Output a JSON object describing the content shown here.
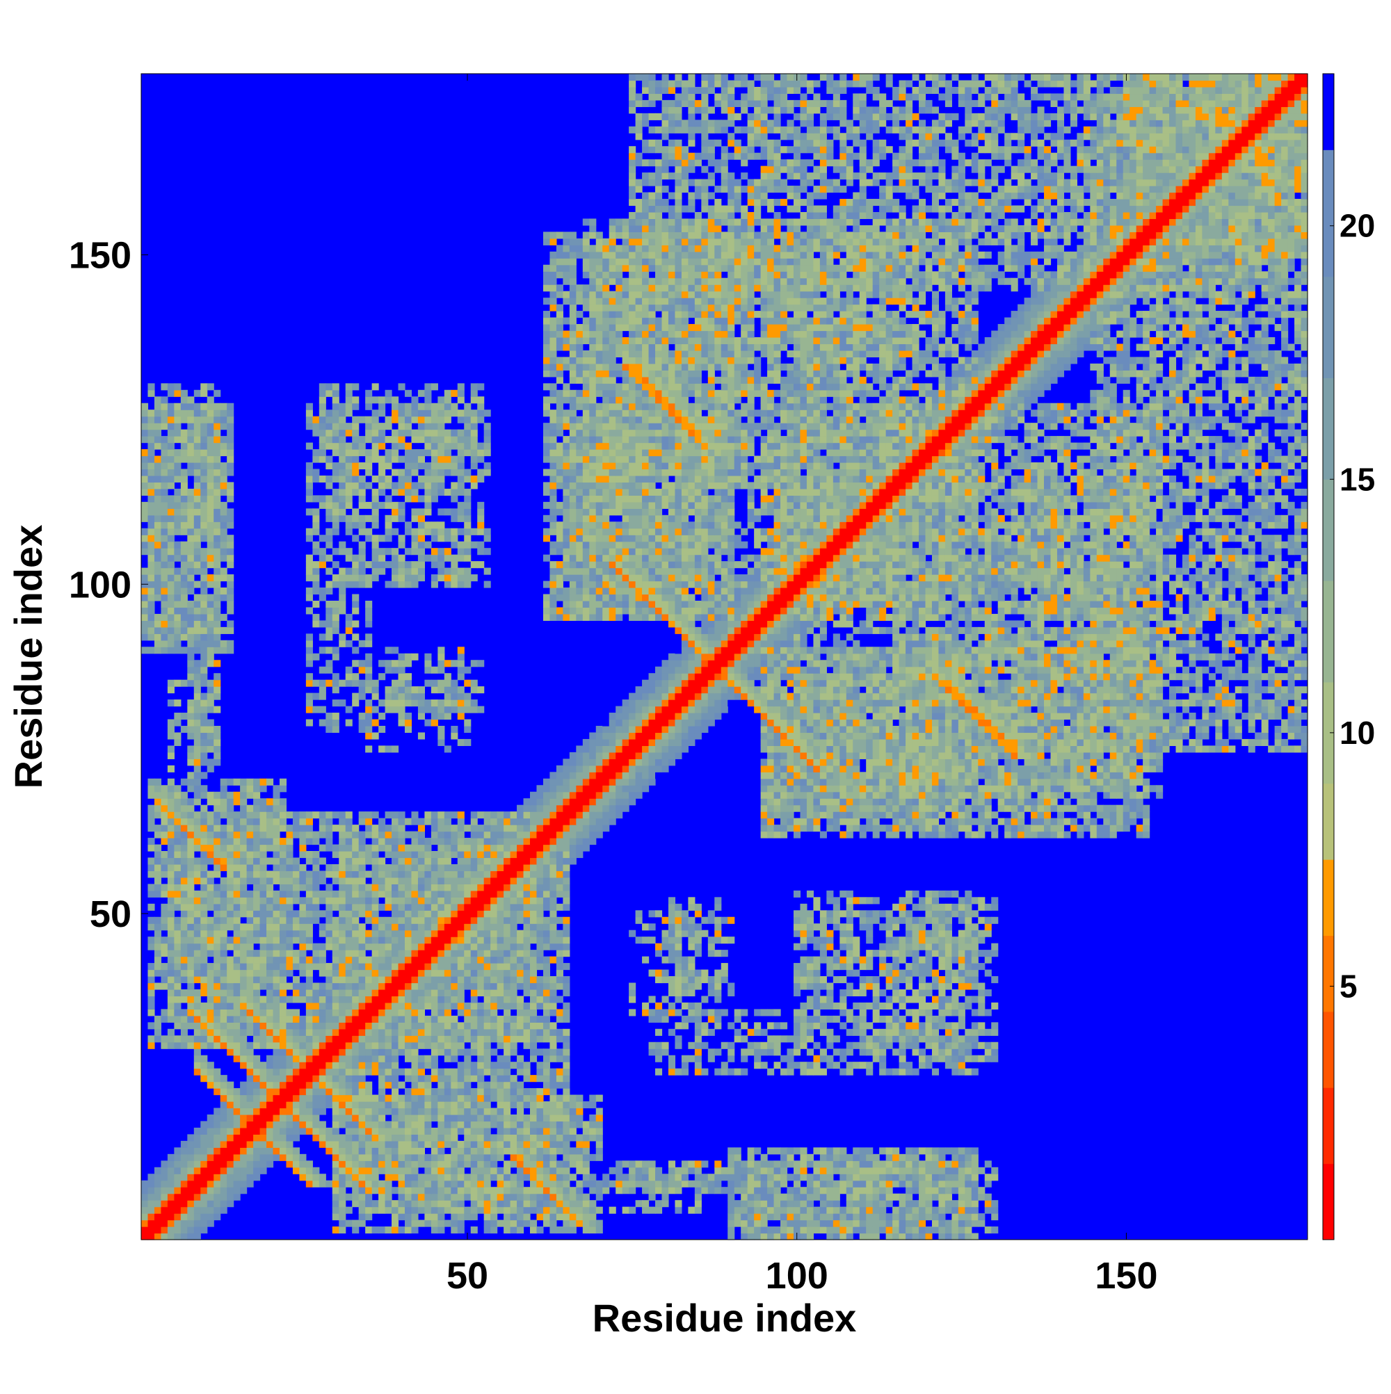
{
  "chart_data": {
    "type": "heatmap",
    "title": "",
    "xlabel": "Residue index",
    "ylabel": "Residue index",
    "xlim": [
      1,
      177
    ],
    "ylim": [
      1,
      177
    ],
    "x_ticks": [
      50,
      100,
      150
    ],
    "y_ticks": [
      50,
      100,
      150
    ],
    "colorbar": {
      "ticks": [
        5,
        10,
        15,
        20
      ],
      "range": [
        0,
        23
      ],
      "levels": [
        {
          "from": 0,
          "to": 1.5,
          "color": "#ff0000"
        },
        {
          "from": 1.5,
          "to": 3,
          "color": "#ff2a00"
        },
        {
          "from": 3,
          "to": 4.5,
          "color": "#ff5500"
        },
        {
          "from": 4.5,
          "to": 6,
          "color": "#ff7700"
        },
        {
          "from": 6,
          "to": 7.5,
          "color": "#ff9a00"
        },
        {
          "from": 7.5,
          "to": 9,
          "color": "#b8c27a"
        },
        {
          "from": 9,
          "to": 11,
          "color": "#a9bf86"
        },
        {
          "from": 11,
          "to": 13,
          "color": "#98b592"
        },
        {
          "from": 13,
          "to": 15,
          "color": "#8aaa9e"
        },
        {
          "from": 15,
          "to": 17,
          "color": "#7c9fa9"
        },
        {
          "from": 17,
          "to": 19,
          "color": "#7194b4"
        },
        {
          "from": 19,
          "to": 21.5,
          "color": "#6a8cbd"
        },
        {
          "from": 21.5,
          "to": 23,
          "color": "#0000ff"
        }
      ]
    },
    "background_value": 23,
    "colors": {
      "far": "#0000ff",
      "diagonal": "#ff0000",
      "contact": "#ff8c00",
      "mid": "#9fbf8a"
    },
    "secondary_structure_bands": [
      {
        "type": "antiparallel",
        "center": [
          13,
          22
        ],
        "half_len": 4
      },
      {
        "type": "antiparallel",
        "center": [
          30,
          22
        ],
        "half_len": 6
      },
      {
        "type": "antiparallel",
        "center": [
          15,
          28
        ],
        "half_len": 7
      },
      {
        "type": "antiparallel",
        "center": [
          62,
          8
        ],
        "half_len": 5
      },
      {
        "type": "antiparallel",
        "center": [
          80,
          127
        ],
        "half_len": 6
      },
      {
        "type": "antiparallel",
        "center": [
          80,
          95
        ],
        "half_len": 8
      },
      {
        "type": "antiparallel",
        "center": [
          95,
          80
        ],
        "half_len": 8
      },
      {
        "type": "antiparallel",
        "center": [
          128,
          80
        ],
        "half_len": 5
      }
    ],
    "contact_blocks": [
      {
        "x": [
          1,
          14
        ],
        "y": [
          90,
          127
        ],
        "density": 0.85
      },
      {
        "x": [
          8,
          12
        ],
        "y": [
          73,
          90
        ],
        "density": 0.7
      },
      {
        "x": [
          26,
          35
        ],
        "y": [
          78,
          127
        ],
        "density": 0.5
      },
      {
        "x": [
          36,
          53
        ],
        "y": [
          100,
          127
        ],
        "density": 0.45
      },
      {
        "x": [
          38,
          52
        ],
        "y": [
          80,
          88
        ],
        "density": 0.45
      },
      {
        "x": [
          62,
          90
        ],
        "y": [
          95,
          153
        ],
        "density": 0.8
      },
      {
        "x": [
          90,
          115
        ],
        "y": [
          100,
          153
        ],
        "density": 0.6
      },
      {
        "x": [
          75,
          180
        ],
        "y": [
          145,
          177
        ],
        "density": 0.7
      },
      {
        "x": [
          160,
          177
        ],
        "y": [
          150,
          177
        ],
        "density": 0.9
      },
      {
        "x": [
          98,
          155
        ],
        "y": [
          95,
          127
        ],
        "density": 0.7
      },
      {
        "x": [
          135,
          145
        ],
        "y": [
          93,
          118
        ],
        "density": 0.55
      },
      {
        "x": [
          115,
          155
        ],
        "y": [
          68,
          93
        ],
        "density": 0.75
      },
      {
        "x": [
          95,
          125
        ],
        "y": [
          65,
          90
        ],
        "density": 0.8
      },
      {
        "x": [
          75,
          90
        ],
        "y": [
          35,
          50
        ],
        "density": 0.4
      },
      {
        "x": [
          100,
          125
        ],
        "y": [
          30,
          50
        ],
        "density": 0.45
      },
      {
        "x": [
          118,
          130
        ],
        "y": [
          28,
          52
        ],
        "density": 0.55
      },
      {
        "x": [
          70,
          85
        ],
        "y": [
          5,
          12
        ],
        "density": 0.4
      },
      {
        "x": [
          93,
          130
        ],
        "y": [
          2,
          12
        ],
        "density": 0.55
      },
      {
        "x": [
          30,
          70
        ],
        "y": [
          2,
          22
        ],
        "density": 0.7
      },
      {
        "x": [
          5,
          60
        ],
        "y": [
          30,
          65
        ],
        "density": 0.8
      }
    ]
  }
}
